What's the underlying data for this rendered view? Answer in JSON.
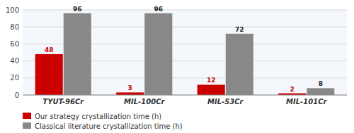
{
  "chart_data": {
    "type": "bar",
    "categories": [
      "TYUT-96Cr",
      "MIL-100Cr",
      "MIL-53Cr",
      "MIL-101Cr"
    ],
    "series": [
      {
        "name": "Our strategy crystallization time (h)",
        "color": "#cc0000",
        "values": [
          48,
          3,
          12,
          2
        ]
      },
      {
        "name": "Classical literature crystallization time (h)",
        "color": "#888888",
        "values": [
          96,
          96,
          72,
          8
        ]
      }
    ],
    "ylim": [
      0,
      100
    ],
    "yticks": [
      0,
      20,
      40,
      60,
      80,
      100
    ],
    "grid": true,
    "data_labels": true,
    "legend": "bottom"
  }
}
